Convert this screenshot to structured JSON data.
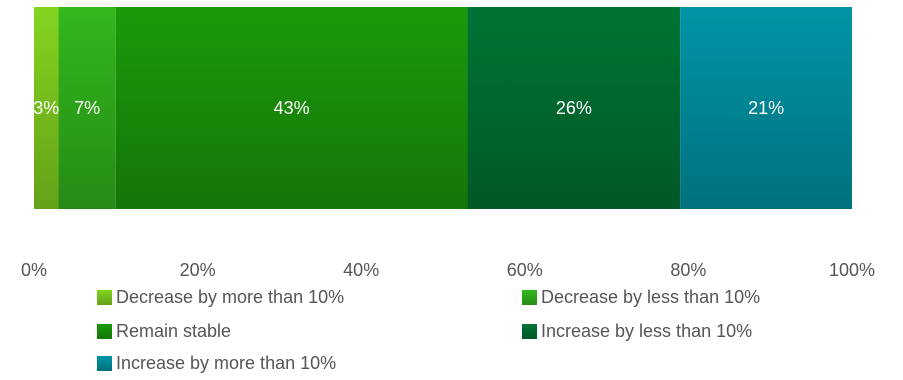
{
  "chart_data": {
    "type": "bar",
    "orientation": "horizontal",
    "stacked": true,
    "categories": [
      ""
    ],
    "series": [
      {
        "name": "Decrease by more than 10%",
        "values": [
          3
        ],
        "label": "3%",
        "color": "#7ac41e"
      },
      {
        "name": "Decrease by less than 10%",
        "values": [
          7
        ],
        "label": "7%",
        "color": "#2eaa1a"
      },
      {
        "name": "Remain stable",
        "values": [
          43
        ],
        "label": "43%",
        "color": "#1a8f0a"
      },
      {
        "name": "Increase by less than 10%",
        "values": [
          26
        ],
        "label": "26%",
        "color": "#006b30"
      },
      {
        "name": "Increase by more than 10%",
        "values": [
          21
        ],
        "label": "21%",
        "color": "#008a9a"
      }
    ],
    "xlim": [
      0,
      100
    ],
    "x_ticks": [
      "0%",
      "20%",
      "40%",
      "60%",
      "80%",
      "100%"
    ],
    "grid": false,
    "legend_position": "bottom"
  }
}
